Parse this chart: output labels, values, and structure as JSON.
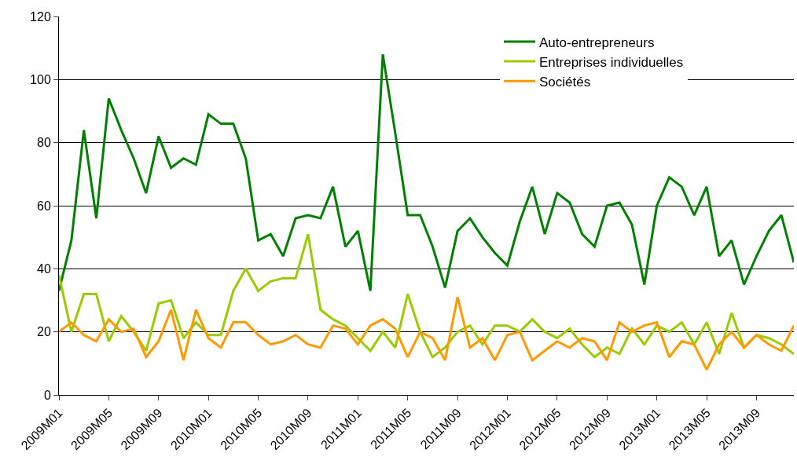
{
  "chart_data": {
    "type": "line",
    "categories": [
      "2009M01",
      null,
      null,
      null,
      "2009M05",
      null,
      null,
      null,
      "2009M09",
      null,
      null,
      null,
      "2010M01",
      null,
      null,
      null,
      "2010M05",
      null,
      null,
      null,
      "2010M09",
      null,
      null,
      null,
      "2011M01",
      null,
      null,
      null,
      "2011M05",
      null,
      null,
      null,
      "2011M09",
      null,
      null,
      null,
      "2012M01",
      null,
      null,
      null,
      "2012M05",
      null,
      null,
      null,
      "2012M09",
      null,
      null,
      null,
      "2013M01",
      null,
      null,
      null,
      "2013M05",
      null,
      null,
      null,
      "2013M09",
      null,
      null,
      null
    ],
    "series": [
      {
        "name": "Auto-entrepreneurs",
        "color": "#008000",
        "values": [
          33,
          49,
          84,
          56,
          94,
          84,
          75,
          64,
          82,
          72,
          75,
          73,
          89,
          86,
          86,
          75,
          49,
          51,
          44,
          56,
          57,
          56,
          66,
          47,
          52,
          33,
          108,
          83,
          57,
          57,
          47,
          34,
          52,
          56,
          50,
          45,
          41,
          55,
          66,
          51,
          64,
          61,
          51,
          47,
          60,
          61,
          54,
          35,
          60,
          69,
          66,
          57,
          66,
          44,
          49,
          35,
          44,
          52,
          57,
          42
        ]
      },
      {
        "name": "Entreprises individuelles",
        "color": "#99cc00",
        "values": [
          38,
          20,
          32,
          32,
          17,
          25,
          20,
          14,
          29,
          30,
          18,
          23,
          19,
          19,
          33,
          40,
          33,
          36,
          37,
          37,
          51,
          27,
          24,
          22,
          18,
          14,
          20,
          15,
          32,
          20,
          12,
          15,
          20,
          22,
          16,
          22,
          22,
          20,
          24,
          20,
          18,
          21,
          16,
          12,
          15,
          13,
          21,
          16,
          22,
          20,
          23,
          16,
          23,
          13,
          26,
          15,
          19,
          18,
          16,
          13
        ]
      },
      {
        "name": "Sociétés",
        "color": "#ff9900",
        "values": [
          20,
          23,
          19,
          17,
          24,
          20,
          21,
          12,
          17,
          27,
          11,
          27,
          18,
          15,
          23,
          23,
          19,
          16,
          17,
          19,
          16,
          15,
          22,
          21,
          16,
          22,
          24,
          21,
          12,
          20,
          18,
          11,
          31,
          15,
          18,
          11,
          19,
          20,
          11,
          14,
          17,
          15,
          18,
          17,
          11,
          23,
          20,
          22,
          23,
          12,
          17,
          16,
          8,
          16,
          20,
          15,
          19,
          16,
          14,
          22
        ]
      }
    ],
    "ylim": [
      0,
      120
    ],
    "yticks": [
      0,
      20,
      40,
      60,
      80,
      100,
      120
    ],
    "grid": "y",
    "legend": "top right",
    "marker": "none",
    "line_style": "solid"
  }
}
